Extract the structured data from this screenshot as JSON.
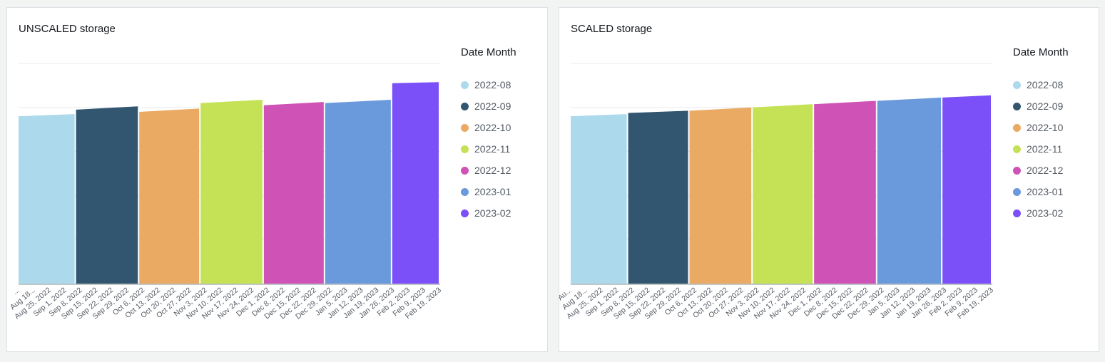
{
  "chart_data": [
    {
      "type": "area",
      "title": "UNSCALED storage",
      "legend_title": "Date Month",
      "legend_placement": "right",
      "grid": true,
      "x_ticks": [
        "...",
        "Aug 18...",
        "Aug 25, 2022",
        "Sep 1, 2022",
        "Sep 8, 2022",
        "Sep 15, 2022",
        "Sep 22, 2022",
        "Sep 29, 2022",
        "Oct 6, 2022",
        "Oct 13, 2022",
        "Oct 20, 2022",
        "Oct 27, 2022",
        "Nov 3, 2022",
        "Nov 10, 2022",
        "Nov 17, 2022",
        "Nov 24, 2022",
        "Dec 1, 2022",
        "Dec 8, 2022",
        "Dec 15, 2022",
        "Dec 22, 2022",
        "Dec 29, 2022",
        "Jan 5, 2023",
        "Jan 12, 2023",
        "Jan 19, 2023",
        "Jan 26, 2023",
        "Feb 2, 2023",
        "Feb 9, 2023",
        "Feb 19, 2023"
      ],
      "ylim": [
        0,
        100
      ],
      "series": [
        {
          "name": "2022-08",
          "color": "#add9ed",
          "values": [
            76,
            77
          ]
        },
        {
          "name": "2022-09",
          "color": "#335670",
          "values": [
            79,
            80.5
          ]
        },
        {
          "name": "2022-10",
          "color": "#ebaa63",
          "values": [
            78,
            79.5
          ]
        },
        {
          "name": "2022-11",
          "color": "#c5e256",
          "values": [
            82,
            83.5
          ]
        },
        {
          "name": "2022-12",
          "color": "#cf52b7",
          "values": [
            81,
            82.5
          ]
        },
        {
          "name": "2023-01",
          "color": "#6b9adc",
          "values": [
            82,
            83.5
          ]
        },
        {
          "name": "2023-02",
          "color": "#7b50f8",
          "values": [
            91,
            91.5
          ]
        }
      ]
    },
    {
      "type": "area",
      "title": "SCALED storage",
      "legend_title": "Date Month",
      "legend_placement": "right",
      "grid": true,
      "x_ticks": [
        "Au...",
        "Aug 18...",
        "Aug 25, 2022",
        "Sep 1, 2022",
        "Sep 8, 2022",
        "Sep 15, 2022",
        "Sep 22, 2022",
        "Sep 29, 2022",
        "Oct 6, 2022",
        "Oct 13, 2022",
        "Oct 20, 2022",
        "Oct 27, 2022",
        "Nov 3, 2022",
        "Nov 10, 2022",
        "Nov 17, 2022",
        "Nov 24, 2022",
        "Dec 1, 2022",
        "Dec 8, 2022",
        "Dec 15, 2022",
        "Dec 22, 2022",
        "Dec 29, 2022",
        "Jan 5, 2023",
        "Jan 12, 2023",
        "Jan 19, 2023",
        "Jan 26, 2023",
        "Feb 2, 2023",
        "Feb 9, 2023",
        "Feb 19, 2023"
      ],
      "ylim": [
        0,
        100
      ],
      "series": [
        {
          "name": "2022-08",
          "color": "#add9ed",
          "values": [
            76,
            77
          ]
        },
        {
          "name": "2022-09",
          "color": "#335670",
          "values": [
            77.5,
            78.5
          ]
        },
        {
          "name": "2022-10",
          "color": "#ebaa63",
          "values": [
            78.5,
            80
          ]
        },
        {
          "name": "2022-11",
          "color": "#c5e256",
          "values": [
            80,
            81.5
          ]
        },
        {
          "name": "2022-12",
          "color": "#cf52b7",
          "values": [
            81.5,
            83
          ]
        },
        {
          "name": "2023-01",
          "color": "#6b9adc",
          "values": [
            83,
            84.5
          ]
        },
        {
          "name": "2023-02",
          "color": "#7b50f8",
          "values": [
            84.5,
            85.5
          ]
        }
      ]
    }
  ]
}
